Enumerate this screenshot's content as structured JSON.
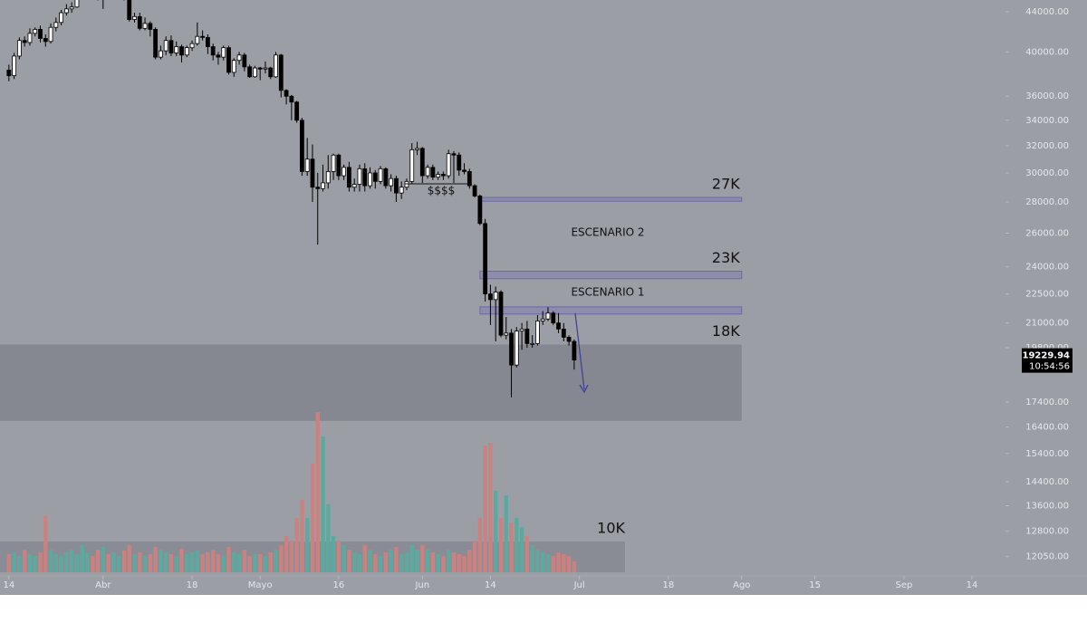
{
  "chart_data": {
    "type": "candlestick",
    "log_scale": true,
    "x": [
      0,
      1,
      2,
      3,
      4,
      5,
      6,
      7,
      8,
      9,
      10,
      11,
      12,
      13,
      14,
      15,
      16,
      17,
      18,
      19,
      20,
      21,
      22,
      23,
      24,
      25,
      26,
      27,
      28,
      29,
      30,
      31,
      32,
      33,
      34,
      35,
      36,
      37,
      38,
      39,
      40,
      41,
      42,
      43,
      44,
      45,
      46,
      47,
      48,
      49,
      50,
      51,
      52,
      53,
      54,
      55,
      56,
      57,
      58,
      59,
      60,
      61,
      62,
      63,
      64,
      65,
      66,
      67,
      68,
      69,
      70,
      71,
      72,
      73,
      74,
      75,
      76,
      77,
      78,
      79,
      80,
      81,
      82,
      83,
      84,
      85,
      86,
      87,
      88,
      89,
      90,
      91,
      92,
      93,
      94,
      95,
      96,
      97,
      98,
      99,
      100,
      101,
      102,
      103,
      104,
      105,
      106,
      107,
      108
    ],
    "open": [
      38300,
      37800,
      39600,
      41100,
      40900,
      41800,
      42200,
      41300,
      41000,
      42400,
      42900,
      43900,
      44300,
      44500,
      46800,
      47100,
      47400,
      47100,
      45500,
      46300,
      45800,
      46400,
      46600,
      45500,
      43200,
      43500,
      42300,
      42800,
      42200,
      39500,
      40100,
      41100,
      39900,
      40500,
      39700,
      40400,
      40800,
      41500,
      41400,
      40500,
      39700,
      39500,
      40400,
      38100,
      39200,
      39700,
      38600,
      37700,
      38500,
      38400,
      38500,
      37700,
      39700,
      36500,
      36000,
      35500,
      34000,
      30100,
      31000,
      29000,
      28900,
      29300,
      30100,
      31300,
      29800,
      30400,
      29000,
      29200,
      30300,
      29100,
      30000,
      29400,
      30300,
      29100,
      29600,
      28600,
      29000,
      29400,
      31700,
      31800,
      29800,
      30400,
      29700,
      29900,
      29800,
      31400,
      31300,
      30200,
      30100,
      29100,
      28400,
      26600,
      22500,
      22200,
      22600,
      20400,
      20500,
      19000,
      20600,
      20700,
      20000,
      20000,
      21100,
      21200,
      21500,
      21000,
      20700,
      20300,
      20100
    ],
    "high": [
      38800,
      39900,
      41400,
      41500,
      42300,
      42400,
      42600,
      41700,
      42800,
      43400,
      44200,
      44800,
      45000,
      47000,
      47600,
      48200,
      48000,
      47500,
      46700,
      47200,
      46900,
      47300,
      47000,
      45700,
      43900,
      43900,
      43400,
      43000,
      42400,
      40600,
      41500,
      41600,
      41000,
      40700,
      40600,
      41100,
      42900,
      42100,
      41700,
      40800,
      40000,
      40600,
      40600,
      39400,
      40000,
      39900,
      38800,
      38700,
      38600,
      39100,
      38600,
      40000,
      39800,
      36600,
      36100,
      35600,
      34200,
      32600,
      32100,
      30000,
      30600,
      31300,
      31400,
      31400,
      30600,
      30800,
      29600,
      30600,
      30700,
      30400,
      30200,
      30500,
      30400,
      29900,
      29800,
      29400,
      29600,
      32200,
      32300,
      31900,
      30600,
      30600,
      30100,
      30100,
      31700,
      31600,
      31500,
      30700,
      30300,
      29200,
      28500,
      26900,
      23000,
      22900,
      22700,
      21300,
      20700,
      20800,
      21000,
      21100,
      20400,
      21400,
      21600,
      21800,
      21600,
      21500,
      21000,
      20400,
      20200
    ],
    "low": [
      37300,
      37500,
      39300,
      40500,
      40600,
      41500,
      40900,
      40500,
      40800,
      42000,
      42600,
      43600,
      43900,
      44400,
      46500,
      46800,
      46600,
      45200,
      44300,
      45500,
      45600,
      45700,
      45200,
      43000,
      42900,
      42100,
      42100,
      41500,
      39300,
      39300,
      39700,
      39600,
      39600,
      39000,
      39500,
      40100,
      40600,
      41100,
      39800,
      39200,
      38800,
      39200,
      37900,
      37700,
      38800,
      38200,
      37600,
      37600,
      37400,
      38000,
      37500,
      37600,
      35900,
      35300,
      34000,
      33800,
      29800,
      29800,
      28000,
      25300,
      28700,
      28900,
      29500,
      29500,
      29500,
      28700,
      28700,
      28700,
      28700,
      28900,
      28900,
      29200,
      28900,
      28700,
      28000,
      28200,
      28800,
      29200,
      31300,
      29300,
      29600,
      29500,
      29500,
      29500,
      29600,
      29300,
      29800,
      29900,
      28900,
      28300,
      26500,
      22100,
      20900,
      20100,
      20300,
      20200,
      17600,
      18900,
      19700,
      19800,
      19800,
      19900,
      20900,
      21100,
      20900,
      20500,
      20100,
      19900,
      18800
    ],
    "close": [
      37800,
      39600,
      41100,
      40900,
      41800,
      42200,
      41300,
      41000,
      42400,
      42900,
      43900,
      44300,
      44500,
      46800,
      47100,
      47400,
      47100,
      45500,
      46300,
      45800,
      46400,
      46600,
      45500,
      43200,
      43500,
      42300,
      42800,
      42200,
      39500,
      40100,
      41100,
      39900,
      40500,
      39700,
      40400,
      40800,
      41500,
      41400,
      40500,
      39700,
      39500,
      40400,
      38100,
      39200,
      39700,
      38600,
      37700,
      38500,
      38400,
      38500,
      37700,
      39700,
      36500,
      36000,
      35500,
      34000,
      30100,
      31000,
      29000,
      28900,
      29300,
      30100,
      31300,
      29800,
      30400,
      29000,
      29200,
      30300,
      29100,
      30000,
      29400,
      30300,
      29100,
      29600,
      28600,
      29000,
      29400,
      31700,
      31800,
      29800,
      30400,
      29700,
      29900,
      29800,
      31400,
      31300,
      30200,
      30100,
      29100,
      28400,
      26600,
      22500,
      22200,
      22600,
      20400,
      20500,
      19000,
      20600,
      20700,
      20000,
      20000,
      21100,
      21200,
      21500,
      21000,
      20700,
      20300,
      20100,
      19229.94
    ],
    "volume": [
      20,
      22,
      18,
      25,
      20,
      18,
      22,
      62,
      25,
      20,
      18,
      22,
      25,
      20,
      30,
      22,
      18,
      25,
      28,
      20,
      22,
      18,
      24,
      30,
      20,
      22,
      18,
      20,
      28,
      25,
      22,
      20,
      18,
      26,
      20,
      22,
      24,
      20,
      22,
      25,
      20,
      18,
      28,
      22,
      20,
      25,
      18,
      20,
      20,
      18,
      22,
      25,
      30,
      40,
      35,
      60,
      80,
      60,
      120,
      177,
      150,
      75,
      40,
      35,
      30,
      25,
      22,
      20,
      30,
      25,
      20,
      18,
      22,
      25,
      28,
      20,
      22,
      30,
      25,
      30,
      25,
      22,
      20,
      18,
      25,
      22,
      20,
      18,
      25,
      35,
      60,
      140,
      143,
      90,
      60,
      85,
      55,
      60,
      50,
      40,
      30,
      25,
      22,
      20,
      18,
      22,
      20,
      18,
      12
    ],
    "up_color": "#ffffff",
    "down_color": "#000000",
    "volume_up_color": "#5ea99f",
    "volume_down_color": "#c98280",
    "ylim": [
      11050,
      45250
    ],
    "yticks": [
      {
        "value": 44000,
        "label": "44000.00"
      },
      {
        "value": 40000,
        "label": "40000.00"
      },
      {
        "value": 36000,
        "label": "36000.00"
      },
      {
        "value": 34000,
        "label": "34000.00"
      },
      {
        "value": 32000,
        "label": "32000.00"
      },
      {
        "value": 30000,
        "label": "30000.00"
      },
      {
        "value": 28000,
        "label": "28000.00"
      },
      {
        "value": 26000,
        "label": "26000.00"
      },
      {
        "value": 24000,
        "label": "24000.00"
      },
      {
        "value": 22500,
        "label": "22500.00"
      },
      {
        "value": 21000,
        "label": "21000.00"
      },
      {
        "value": 19800,
        "label": "19800.00"
      },
      {
        "value": 17400,
        "label": "17400.00"
      },
      {
        "value": 16400,
        "label": "16400.00"
      },
      {
        "value": 15400,
        "label": "15400.00"
      },
      {
        "value": 14400,
        "label": "14400.00"
      },
      {
        "value": 13600,
        "label": "13600.00"
      },
      {
        "value": 12800,
        "label": "12800.00"
      },
      {
        "value": 12050,
        "label": "12050.00"
      }
    ],
    "xlim": [
      -1.7,
      190.4
    ],
    "xticks": [
      {
        "value": 0,
        "label": "14"
      },
      {
        "value": 18,
        "label": "Abr"
      },
      {
        "value": 35,
        "label": "18"
      },
      {
        "value": 48,
        "label": "Mayo"
      },
      {
        "value": 63,
        "label": "16"
      },
      {
        "value": 79,
        "label": "Jun"
      },
      {
        "value": 92,
        "label": "14"
      },
      {
        "value": 109,
        "label": "Jul"
      },
      {
        "value": 126,
        "label": "18"
      },
      {
        "value": 140,
        "label": "Ago"
      },
      {
        "value": 154,
        "label": "15"
      },
      {
        "value": 171,
        "label": "Sep"
      },
      {
        "value": 184,
        "label": "14"
      }
    ],
    "zones": [
      {
        "label": "27K",
        "low": 28050,
        "high": 28300,
        "from": 90,
        "to": 140
      },
      {
        "label": "23K",
        "low": 23330,
        "high": 23750,
        "from": 90,
        "to": 140
      },
      {
        "low": 21450,
        "high": 21820,
        "from": 90,
        "to": 140
      },
      {
        "label": "18K",
        "low": 16640,
        "high": 19950,
        "from": -1.7,
        "to": 140
      }
    ],
    "zone_color": "#8d8cab",
    "zone_border": "#6c69a3",
    "range_color": "#868891",
    "annotations": {
      "scenario_2": "ESCENARIO 2",
      "scenario_1": "ESCENARIO 1",
      "liquidity": "$$$$",
      "volume_level": "10K"
    },
    "countdown": "10:54:56"
  }
}
